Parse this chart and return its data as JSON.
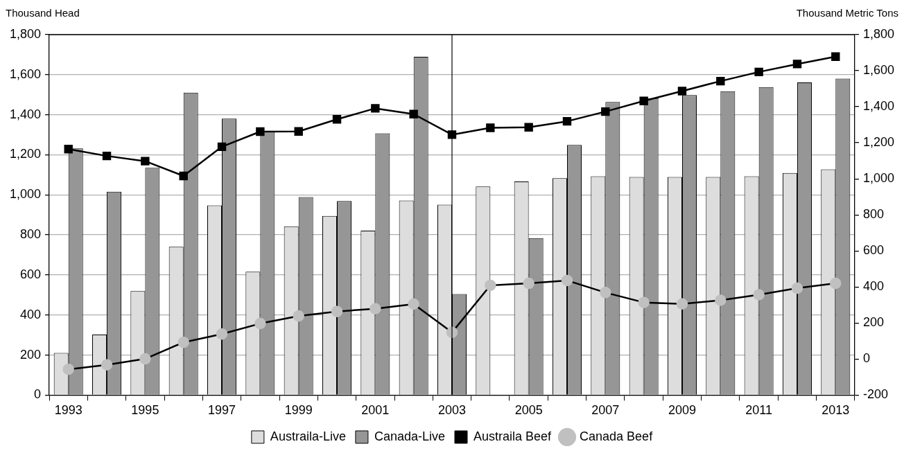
{
  "chart_data": {
    "type": "bar",
    "ylabel": "Thousand Head",
    "y2label": "Thousand Metric Tons",
    "categories": [
      "1993",
      null,
      "1995",
      null,
      "1997",
      null,
      "1999",
      null,
      "2001",
      null,
      "2003",
      null,
      "2005",
      null,
      "2007",
      null,
      "2009",
      null,
      "2011",
      null,
      "2013"
    ],
    "series": [
      {
        "name": "Austraila-Live",
        "color": "#dddddd",
        "values": [
          211,
          302,
          519,
          741,
          947,
          616,
          843,
          895,
          821,
          972,
          951,
          1042,
          1067,
          1083,
          1093,
          1089,
          1089,
          1089,
          1093,
          1109,
          1127
        ]
      },
      {
        "name": "Canada-Live",
        "color": "#969696",
        "values": [
          1232,
          1016,
          1135,
          1510,
          1381,
          1315,
          989,
          969,
          1307,
          1689,
          505,
          null,
          784,
          1249,
          1464,
          1483,
          1498,
          1517,
          1538,
          1561,
          1580
        ]
      },
      {
        "name": "Austraila Beef",
        "type": "line",
        "axis": "y2",
        "color": "#000000",
        "marker": "square",
        "values": [
          1165,
          1127,
          1098,
          1016,
          1178,
          1262,
          1263,
          1330,
          1391,
          1359,
          1245,
          1283,
          1286,
          1319,
          1373,
          1432,
          1487,
          1542,
          1593,
          1637,
          1678
        ]
      },
      {
        "name": "Canada Beef",
        "type": "line",
        "axis": "y2",
        "color": "#c0c0c0",
        "marker": "circle",
        "values": [
          -57,
          -32,
          1,
          93,
          139,
          197,
          239,
          264,
          279,
          305,
          148,
          409,
          420,
          436,
          369,
          314,
          306,
          326,
          357,
          393,
          420
        ]
      }
    ],
    "ylim": [
      0,
      1800
    ],
    "yticks": [
      0,
      200,
      400,
      600,
      800,
      {
        "value": 1000,
        "label": "1,000"
      },
      {
        "value": 1200,
        "label": "1,200"
      },
      {
        "value": 1400,
        "label": "1,400"
      },
      {
        "value": 1600,
        "label": "1,600"
      },
      {
        "value": 1800,
        "label": "1,800"
      }
    ],
    "y2lim": [
      -200,
      1800
    ],
    "y2ticks": [
      -200,
      0,
      200,
      400,
      600,
      800,
      {
        "value": 1000,
        "label": "1,000"
      },
      {
        "value": 1200,
        "label": "1,200"
      },
      {
        "value": 1400,
        "label": "1,400"
      },
      {
        "value": 1600,
        "label": "1,600"
      },
      {
        "value": 1800,
        "label": "1,800"
      }
    ],
    "ref_lines": [
      {
        "axis": "x",
        "value": "2003",
        "color": "#000000"
      }
    ],
    "grid": "y",
    "legend": "bottom"
  }
}
